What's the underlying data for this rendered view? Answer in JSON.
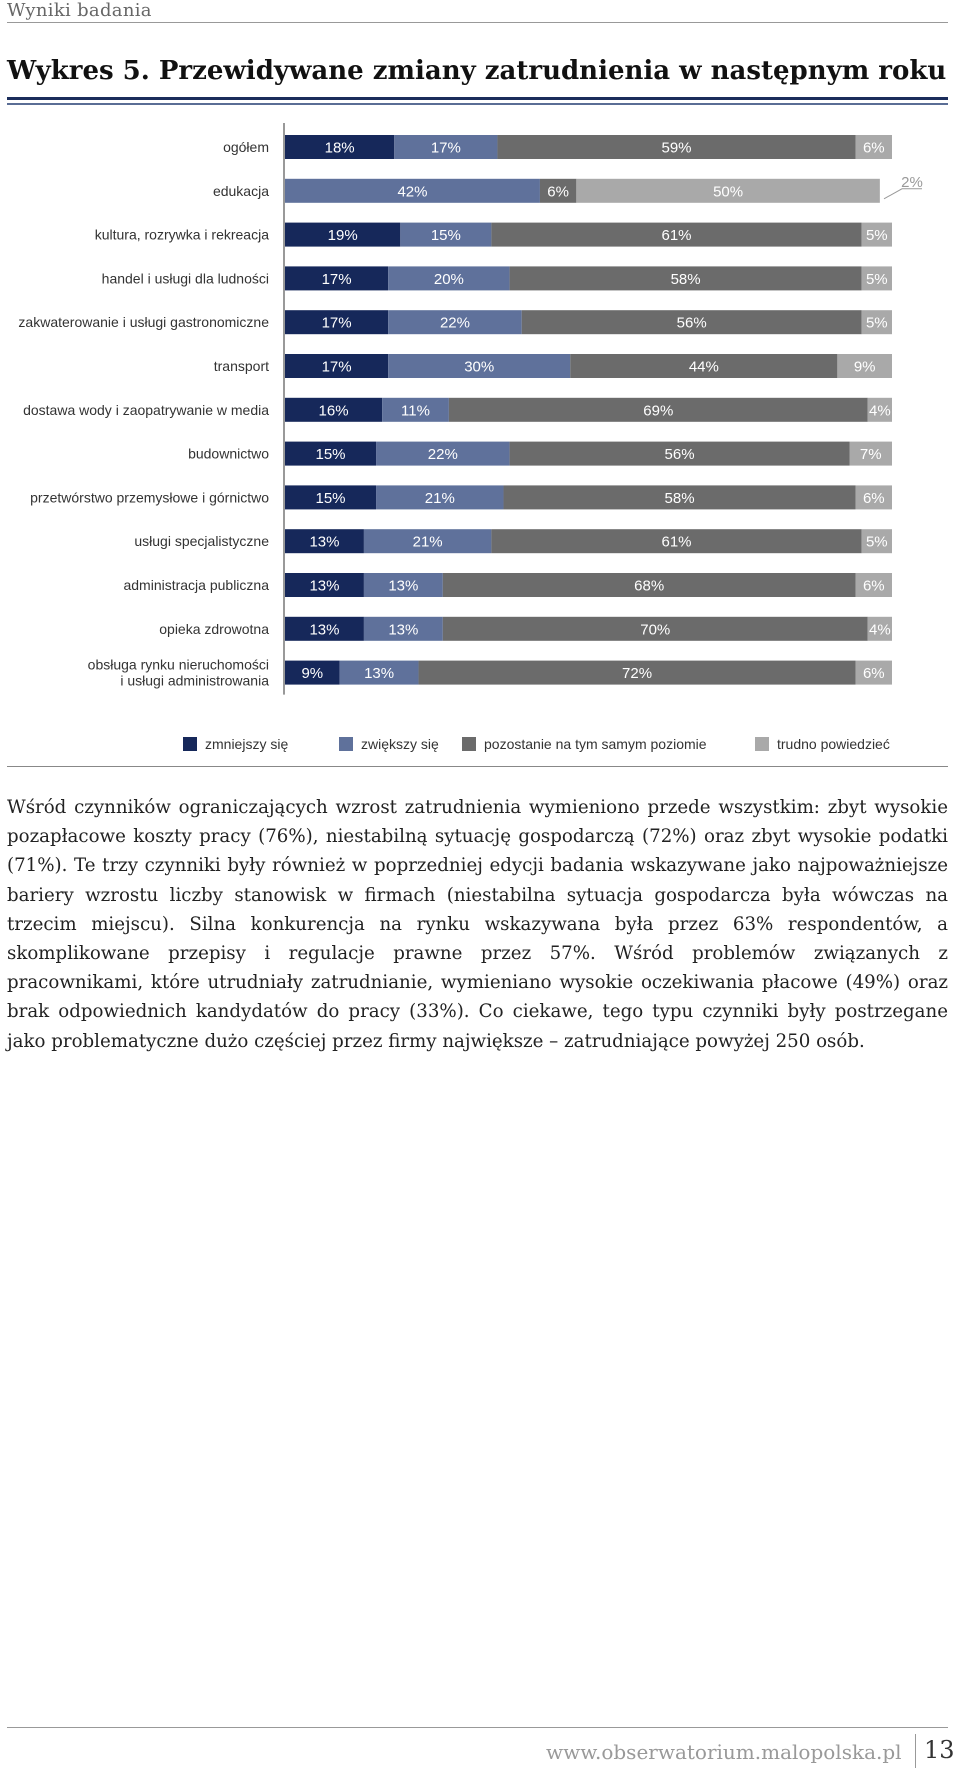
{
  "page": {
    "section": "Wyniki badania",
    "figure_title": "Wykres 5. Przewidywane zmiany zatrudnienia w następnym roku",
    "body_text": "Wśród czynników ograniczających wzrost zatrudnienia wymieniono przede wszystkim: zbyt wysokie pozapłacowe koszty pracy (76%), niestabilną sytuację gospodarczą (72%) oraz zbyt wysokie podatki (71%). Te trzy czynniki były również w poprzedniej edycji badania wskazywane jako najpoważniejsze bariery wzrostu liczby stanowisk w firmach (niestabilna sytuacja gospodarcza była wówczas na trzecim miejscu). Silna konkurencja na rynku wskazywana była przez 63% respondentów, a skomplikowane przepisy i regulacje prawne przez 57%. Wśród problemów związanych z pracownikami, które utrudniały zatrudnianie, wymieniano wysokie oczekiwania płacowe (49%) oraz brak odpowiednich kandydatów do pracy (33%). Co ciekawe, tego typu czynniki były postrzegane jako problematyczne dużo częściej przez firmy największe – zatrudniające powyżej 250 osób.",
    "footer_url": "www.obserwatorium.malopolska.pl",
    "page_number": "13"
  },
  "chart_data": {
    "type": "bar",
    "orientation": "horizontal",
    "stacked": true,
    "percent_suffix": "%",
    "categories": [
      [
        "ogółem"
      ],
      [
        "edukacja"
      ],
      [
        "kultura, rozrywka i rekreacja"
      ],
      [
        "handel i usługi dla ludności"
      ],
      [
        "zakwaterowanie i usługi gastronomiczne"
      ],
      [
        "transport"
      ],
      [
        "dostawa wody i zaopatrywanie w media"
      ],
      [
        "budownictwo"
      ],
      [
        "przetwórstwo przemysłowe i górnictwo"
      ],
      [
        "usługi specjalistyczne"
      ],
      [
        "administracja publiczna"
      ],
      [
        "opieka zdrowotna"
      ],
      [
        "obsługa rynku nieruchomości",
        "i usługi administrowania"
      ]
    ],
    "series": [
      {
        "name": "zmniejszy się",
        "color": "#16285a",
        "values": [
          18,
          0,
          19,
          17,
          17,
          17,
          16,
          15,
          15,
          13,
          13,
          13,
          9
        ]
      },
      {
        "name": "zwiększy się",
        "color": "#5f719b",
        "values": [
          17,
          42,
          15,
          20,
          22,
          30,
          11,
          22,
          21,
          21,
          13,
          13,
          13
        ]
      },
      {
        "name": "pozostanie na tym samym poziomie",
        "color": "#6b6b6b",
        "values": [
          59,
          6,
          61,
          58,
          56,
          44,
          69,
          56,
          58,
          61,
          68,
          70,
          72
        ]
      },
      {
        "name": "trudno powiedzieć",
        "color": "#a9a9a9",
        "values": [
          6,
          50,
          5,
          5,
          5,
          9,
          4,
          7,
          6,
          5,
          6,
          4,
          6
        ]
      }
    ],
    "outside_labels": [
      null,
      2,
      null,
      null,
      null,
      null,
      null,
      null,
      null,
      null,
      null,
      null,
      null
    ],
    "legend_position": "bottom",
    "xlim": [
      0,
      100
    ],
    "grid": false
  }
}
